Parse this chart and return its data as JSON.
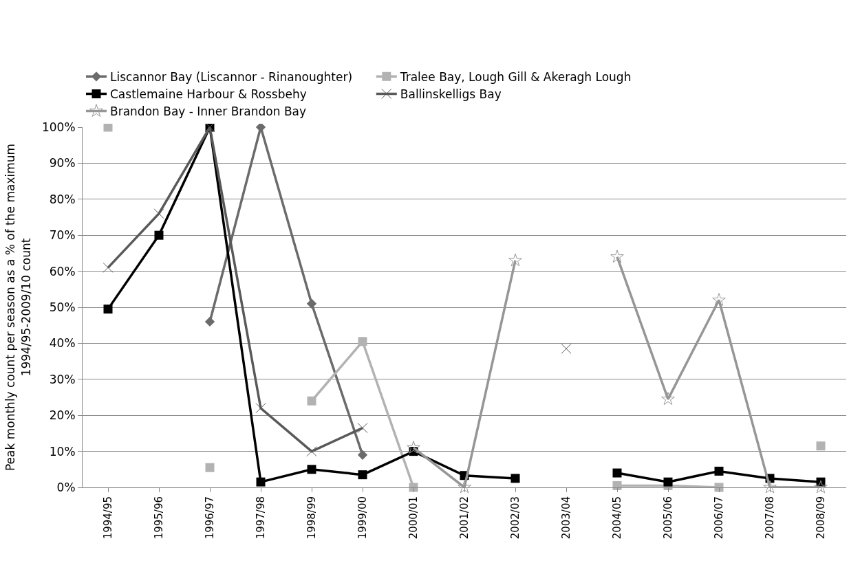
{
  "chart_data": {
    "type": "line",
    "ylabel": "Peak monthly count per season as a % of the maximum 1994/95-2009/10 count",
    "categories": [
      "1994/95",
      "1995/96",
      "1996/97",
      "1997/98",
      "1998/99",
      "1999/00",
      "2000/01",
      "2001/02",
      "2002/03",
      "2003/04",
      "2004/05",
      "2005/06",
      "2006/07",
      "2007/08",
      "2008/09"
    ],
    "series": [
      {
        "name": "Liscannor Bay (Liscannor - Rinanoughter)",
        "color": "#6b6b6b",
        "marker": "diamond",
        "values": [
          null,
          null,
          46,
          100,
          51,
          9,
          null,
          null,
          null,
          null,
          null,
          null,
          null,
          null,
          null
        ]
      },
      {
        "name": "Tralee Bay, Lough Gill & Akeragh Lough",
        "color": "#b2b2b2",
        "marker": "square",
        "values": [
          100,
          null,
          5.5,
          null,
          24,
          40.5,
          0,
          null,
          null,
          null,
          0.5,
          0.5,
          0,
          null,
          11.5
        ]
      },
      {
        "name": "Castlemaine Harbour & Rossbehy",
        "color": "#000000",
        "marker": "square",
        "values": [
          49.5,
          70,
          100,
          1.5,
          5,
          3.5,
          10,
          3.3,
          2.5,
          null,
          4,
          1.5,
          4.5,
          2.5,
          1.5
        ]
      },
      {
        "name": "Ballinskelligs Bay",
        "color": "#595959",
        "marker": "cross",
        "values": [
          61,
          76,
          100,
          22,
          10,
          16.5,
          null,
          null,
          null,
          38.5,
          null,
          null,
          null,
          null,
          null
        ]
      },
      {
        "name": "Brandon Bay - Inner Brandon Bay",
        "color": "#969696",
        "marker": "star",
        "values": [
          null,
          null,
          null,
          null,
          null,
          null,
          11,
          0,
          63,
          null,
          64,
          24.5,
          52,
          0,
          0
        ]
      }
    ],
    "ylim": [
      0,
      100
    ],
    "yticks": [
      {
        "value": 0,
        "label": "0%"
      },
      {
        "value": 10,
        "label": "10%"
      },
      {
        "value": 20,
        "label": "20%"
      },
      {
        "value": 30,
        "label": "30%"
      },
      {
        "value": 40,
        "label": "40%"
      },
      {
        "value": 50,
        "label": "50%"
      },
      {
        "value": 60,
        "label": "60%"
      },
      {
        "value": 70,
        "label": "70%"
      },
      {
        "value": 80,
        "label": "80%"
      },
      {
        "value": 90,
        "label": "90%"
      },
      {
        "value": 100,
        "label": "100%"
      }
    ],
    "grid": "y",
    "legend": "top",
    "line_style": "solid"
  }
}
